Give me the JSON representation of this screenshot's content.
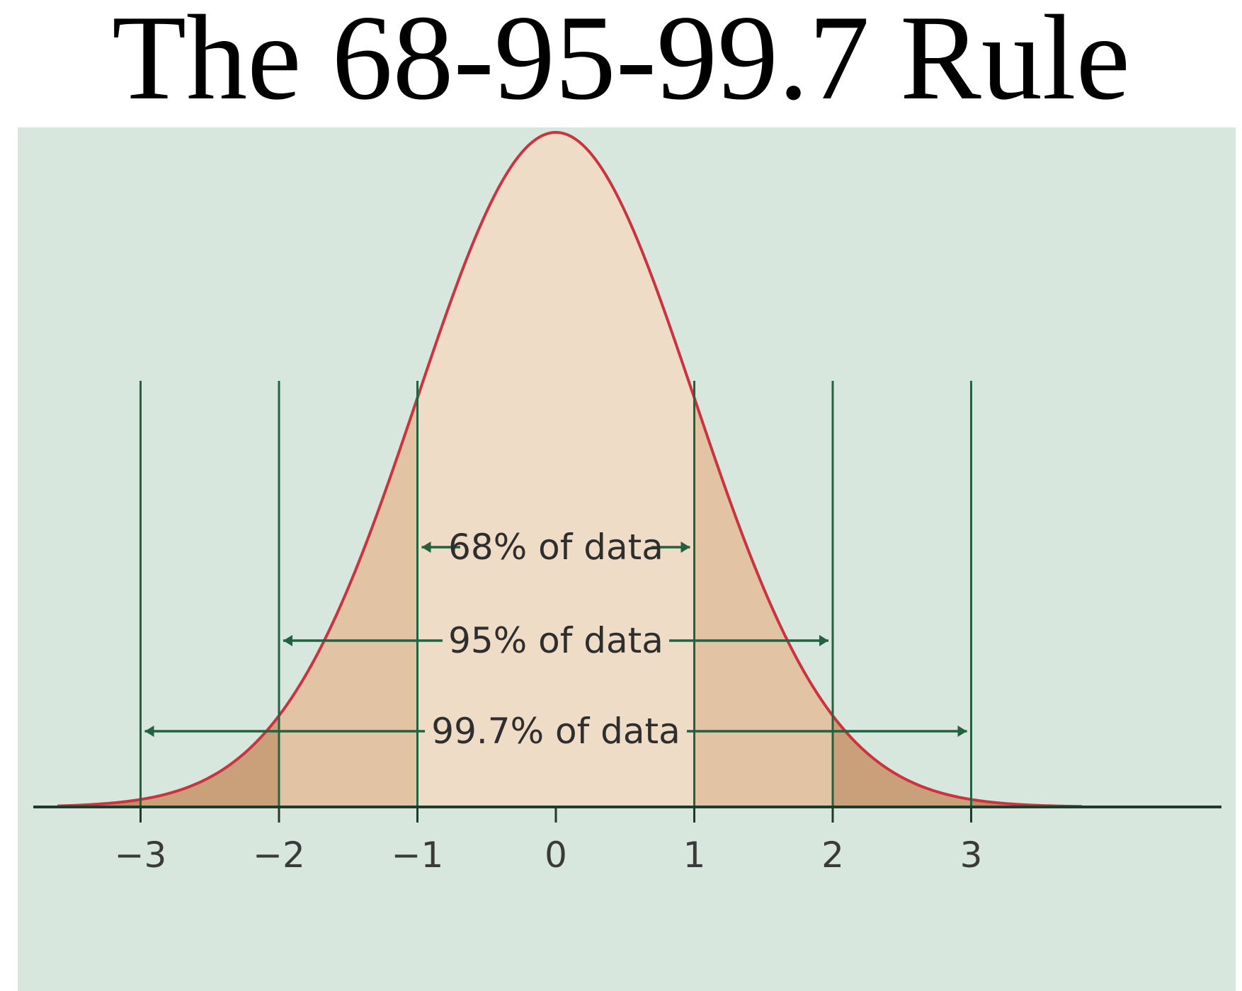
{
  "chart_data": {
    "type": "area",
    "title": "The 68-95-99.7 Rule",
    "xlabel": "",
    "ylabel": "",
    "x_range": [
      -3.6,
      3.8
    ],
    "curve": "normal-distribution",
    "mean": 0,
    "sd": 1,
    "ticks": [
      {
        "value": -3,
        "label": "−3"
      },
      {
        "value": -2,
        "label": "−2"
      },
      {
        "value": -1,
        "label": "−1"
      },
      {
        "value": 0,
        "label": "0"
      },
      {
        "value": 1,
        "label": "1"
      },
      {
        "value": 2,
        "label": "2"
      },
      {
        "value": 3,
        "label": "3"
      }
    ],
    "brackets": [
      {
        "from": -1,
        "to": 1,
        "label": "68% of data",
        "percent": 68
      },
      {
        "from": -2,
        "to": 2,
        "label": "95% of data",
        "percent": 95
      },
      {
        "from": -3,
        "to": 3,
        "label": "99.7% of data",
        "percent": 99.7
      }
    ],
    "colors": {
      "background": "#d7e7de",
      "curve": "#c9343f",
      "guides": "#226240",
      "axis": "#1f3b2c",
      "band_center": "#efdcc7",
      "band_one_sd": "#e2c4a4",
      "band_two_sd": "#c9a07a",
      "band_three_sd": "#b98e66"
    }
  }
}
